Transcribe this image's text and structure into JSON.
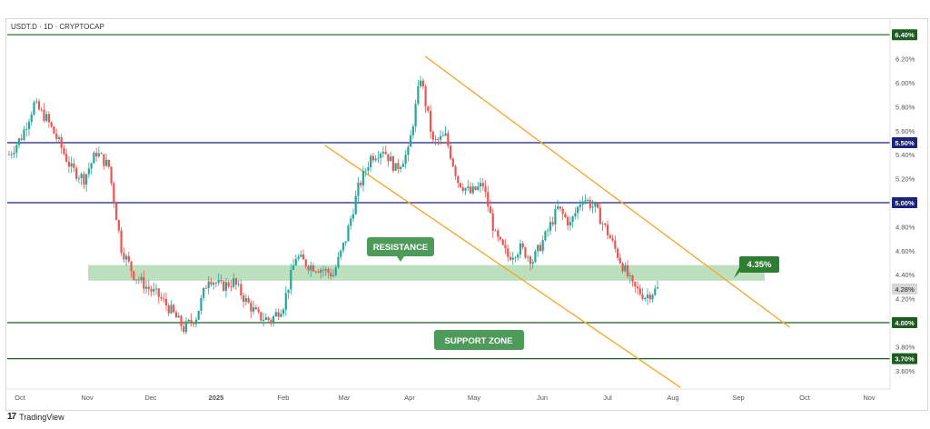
{
  "header": {
    "symbol_line": "USDT.D · 1D · CRYPTOCAP"
  },
  "footer": {
    "logo_glyph": "17",
    "brand": "TradingView"
  },
  "chart_data": {
    "type": "candlestick",
    "title": "USDT.D · 1D · CRYPTOCAP",
    "x_ticks": [
      "Oct",
      "Nov",
      "Dec",
      "2025",
      "Feb",
      "Mar",
      "Apr",
      "May",
      "Jun",
      "Jul",
      "Aug",
      "Sep",
      "Oct",
      "Nov"
    ],
    "y_ticks": [
      "6.20%",
      "6.00%",
      "5.80%",
      "5.60%",
      "5.40%",
      "5.20%",
      "4.80%",
      "4.60%",
      "4.40%",
      "4.20%",
      "3.80%",
      "3.60%"
    ],
    "ylim": [
      3.5,
      6.5
    ],
    "horizontal_levels": [
      {
        "value": 6.4,
        "label": "6.40%",
        "color": "#1b5e20"
      },
      {
        "value": 5.5,
        "label": "5.50%",
        "color": "#1a237e"
      },
      {
        "value": 5.0,
        "label": "5.00%",
        "color": "#1a237e"
      },
      {
        "value": 4.0,
        "label": "4.00%",
        "color": "#1b5e20"
      },
      {
        "value": 3.7,
        "label": "3.70%",
        "color": "#1b5e20"
      }
    ],
    "current_price": {
      "value": 4.28,
      "label": "4.28%"
    },
    "resistance_zone": {
      "low": 4.35,
      "high": 4.48,
      "label": "RESISTANCE"
    },
    "support_zone": {
      "low": 3.7,
      "high": 4.0,
      "label": "SUPPORT ZONE"
    },
    "target_label": {
      "value": 4.35,
      "label": "4.35%"
    },
    "channel": {
      "upper": {
        "start": [
          "2025-04-08",
          6.22
        ],
        "end": [
          "2025-09-25",
          3.96
        ]
      },
      "lower": {
        "start": [
          "2025-02-20",
          5.48
        ],
        "end": [
          "2025-08-05",
          3.46
        ]
      }
    },
    "colors": {
      "up": "#26a69a",
      "down": "#ef5350",
      "zone": "#a5d6a7",
      "channel": "#f5a623",
      "label_bg": "#4e9a5a",
      "target_bg": "#2e7d32"
    },
    "series": [
      {
        "name": "",
        "ohlc_close_by_week": [
          5.4,
          5.55,
          5.82,
          5.7,
          5.5,
          5.28,
          5.2,
          5.42,
          5.3,
          4.62,
          4.4,
          4.3,
          4.22,
          4.1,
          3.95,
          4.05,
          4.38,
          4.3,
          4.34,
          4.18,
          4.05,
          4.02,
          4.15,
          4.55,
          4.48,
          4.45,
          4.4,
          4.7,
          5.12,
          5.38,
          5.45,
          5.28,
          5.42,
          6.05,
          5.5,
          5.55,
          5.18,
          5.08,
          5.15,
          4.72,
          4.55,
          4.62,
          4.52,
          4.72,
          4.95,
          4.82,
          5.05,
          4.95,
          4.75,
          4.52,
          4.3,
          4.22,
          4.28
        ]
      }
    ]
  }
}
